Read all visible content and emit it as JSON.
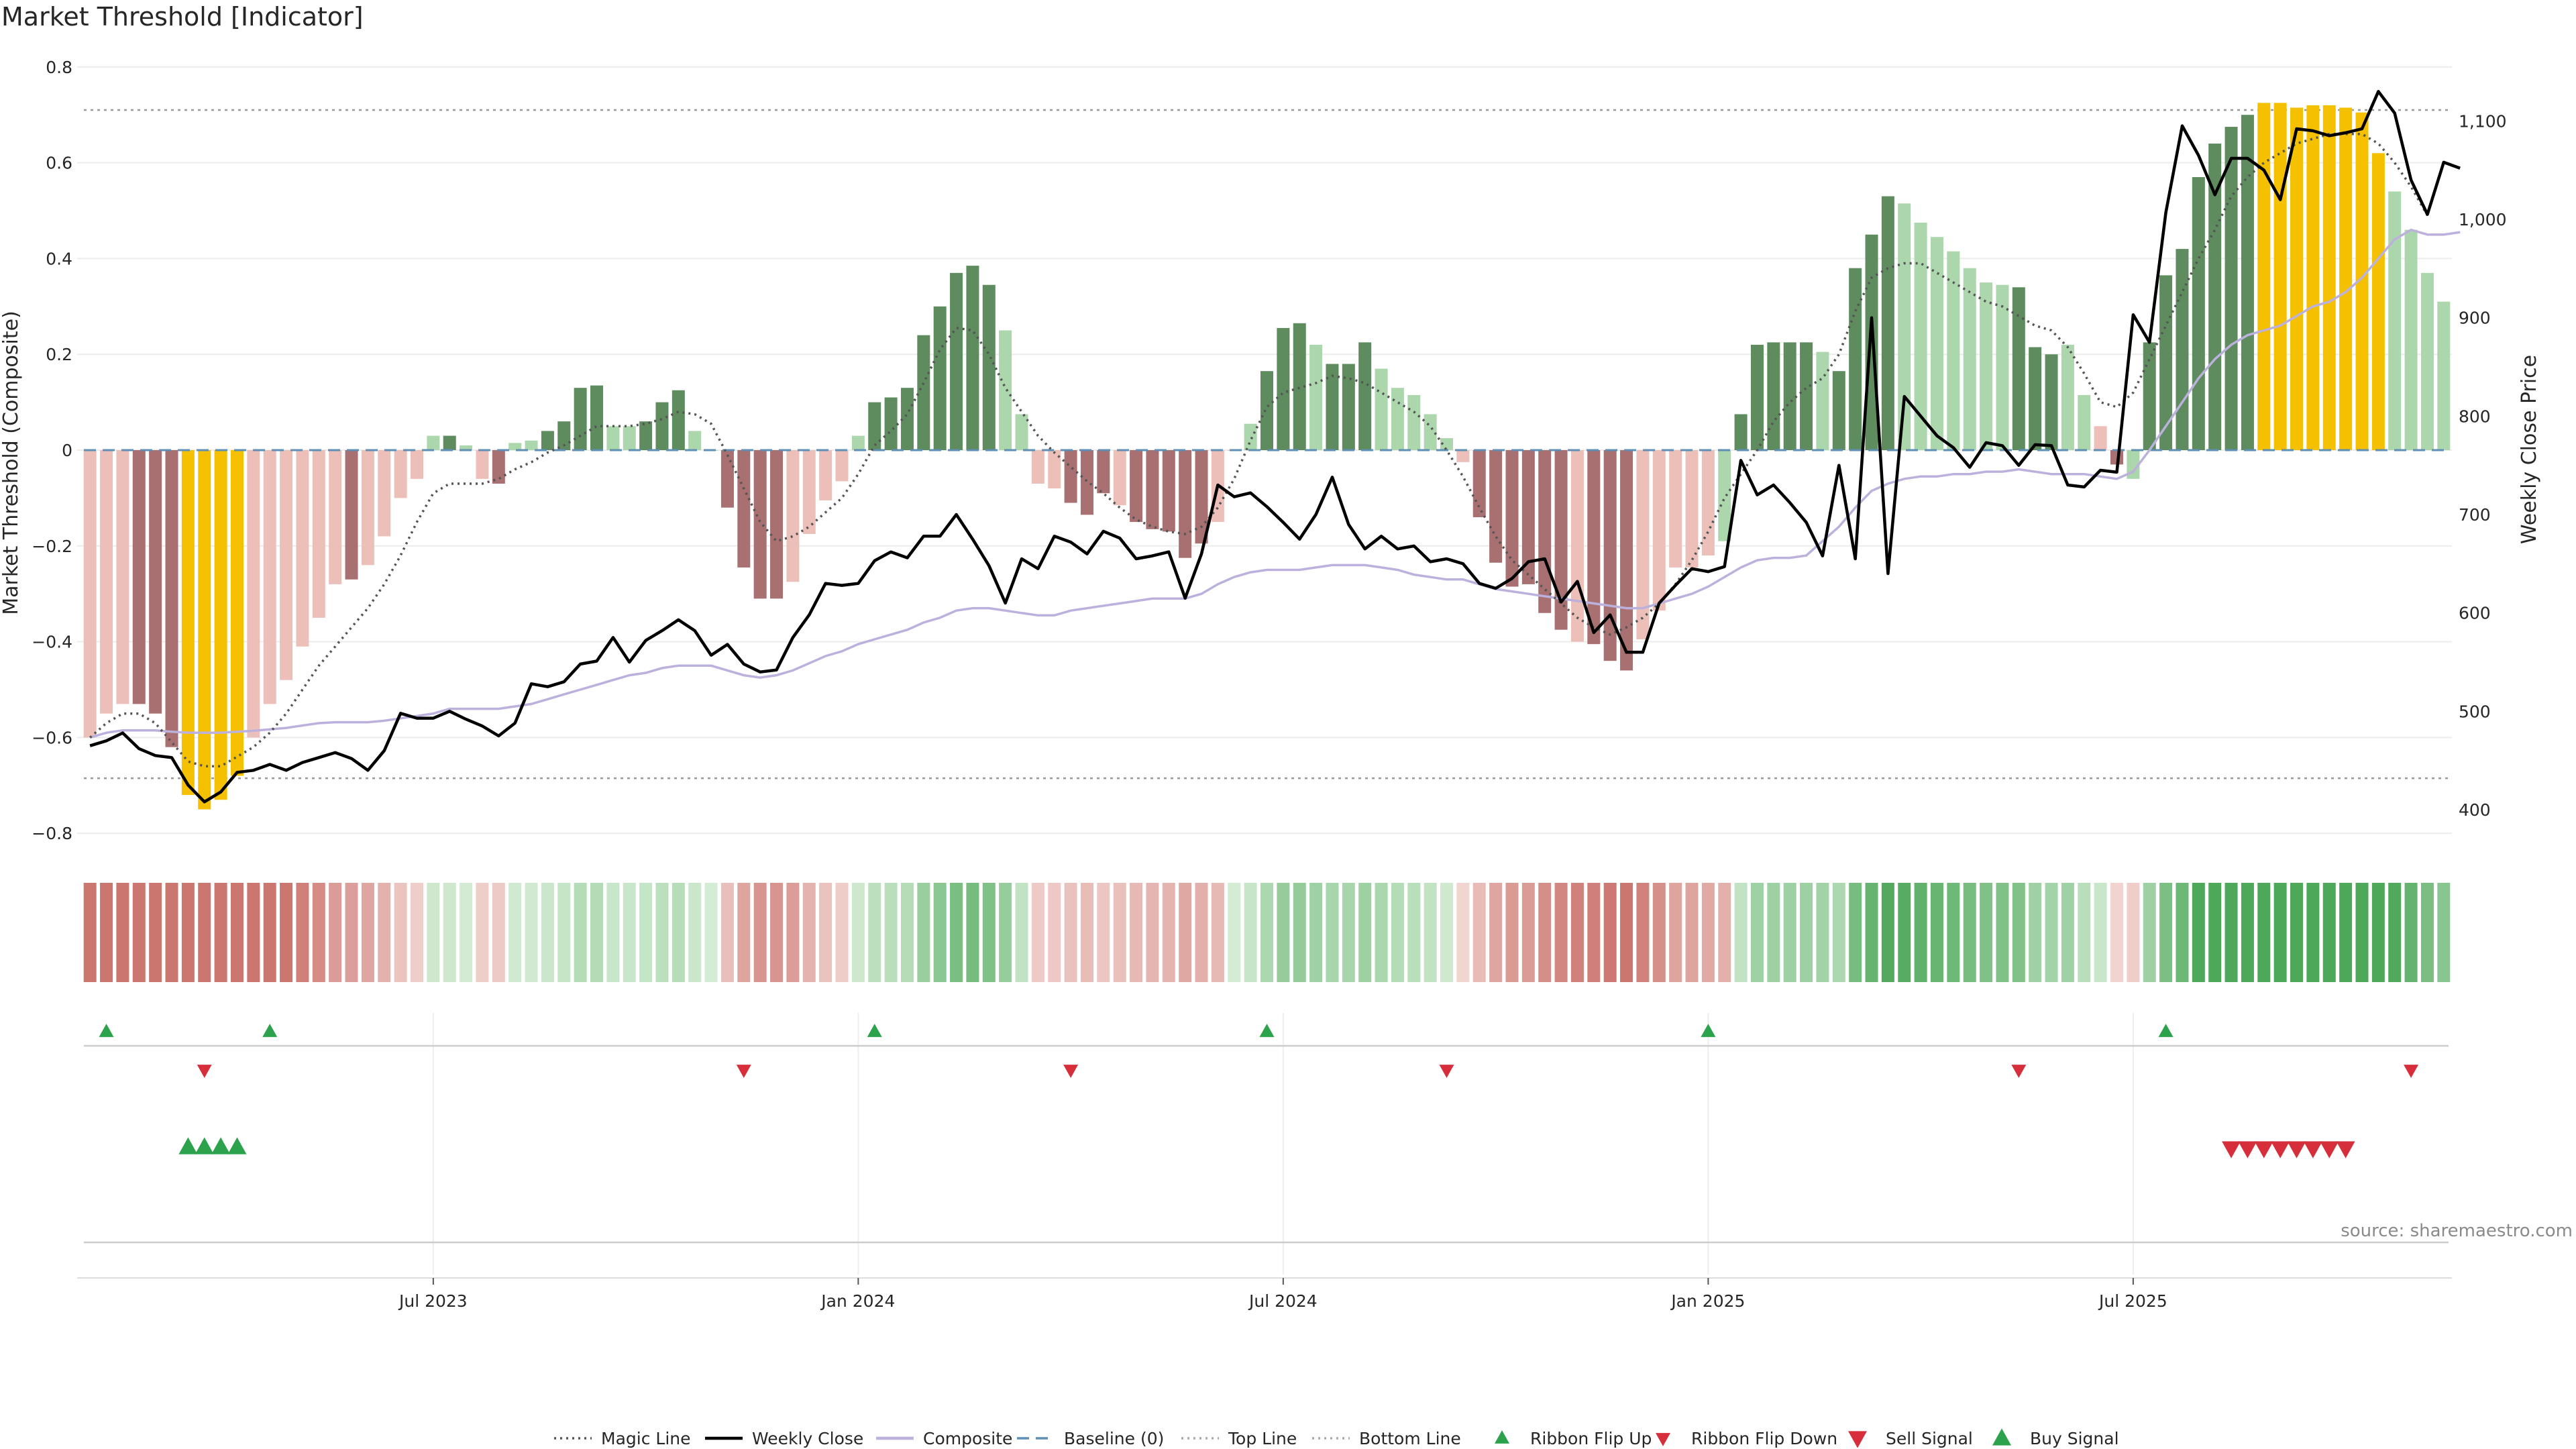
{
  "chart_data": {
    "type": "bar",
    "title": "Market Threshold [Indicator]",
    "ylabel_left": "Market Threshold (Composite)",
    "ylabel_right": "Weekly Close Price",
    "source": "source: sharemaestro.com",
    "y_left_ticks": [
      "0.8",
      "0.6",
      "0.4",
      "0.2",
      "0",
      "−0.2",
      "−0.4",
      "−0.6",
      "−0.8"
    ],
    "y_left_range": [
      -0.8,
      0.8
    ],
    "y_right_ticks": [
      "1,100",
      "1,000",
      "900",
      "800",
      "700",
      "600",
      "500",
      "400"
    ],
    "y_right_range": [
      390,
      1140
    ],
    "x_ticks": [
      "Jul 2023",
      "Jan 2024",
      "Jul 2024",
      "Jan 2025",
      "Jul 2025"
    ],
    "x_tick_index": [
      21,
      47,
      73,
      99,
      125
    ],
    "top_line": 0.71,
    "bottom_line": -0.685,
    "grid": true,
    "legend_position": "bottom",
    "colors": {
      "strong_pos": "#5e8c5e",
      "weak_pos": "#acd6ac",
      "strong_neg": "#a87070",
      "weak_neg": "#ecc0b9",
      "extreme": "#f5c000",
      "close": "#000000",
      "magic": "#555555",
      "composite": "#bcb0dc",
      "baseline": "#5f8fb4",
      "buy": "#2ca24c",
      "sell": "#d62f3b"
    },
    "bar_styles": [
      "weak_neg",
      "weak_neg",
      "weak_neg",
      "strong_neg",
      "strong_neg",
      "strong_neg",
      "extreme",
      "extreme",
      "extreme",
      "extreme",
      "weak_neg",
      "weak_neg",
      "weak_neg",
      "weak_neg",
      "weak_neg",
      "weak_neg",
      "strong_neg",
      "weak_neg",
      "weak_neg",
      "weak_neg",
      "weak_neg",
      "weak_pos",
      "strong_pos",
      "weak_pos",
      "weak_neg",
      "strong_neg",
      "weak_pos",
      "weak_pos",
      "strong_pos",
      "strong_pos",
      "strong_pos",
      "strong_pos",
      "weak_pos",
      "weak_pos",
      "strong_pos",
      "strong_pos",
      "strong_pos",
      "weak_pos",
      "weak_pos",
      "strong_neg",
      "strong_neg",
      "strong_neg",
      "strong_neg",
      "weak_neg",
      "weak_neg",
      "weak_neg",
      "weak_neg",
      "weak_pos",
      "strong_pos",
      "strong_pos",
      "strong_pos",
      "strong_pos",
      "strong_pos",
      "strong_pos",
      "strong_pos",
      "strong_pos",
      "weak_pos",
      "weak_pos",
      "weak_neg",
      "weak_neg",
      "strong_neg",
      "strong_neg",
      "strong_neg",
      "weak_neg",
      "strong_neg",
      "strong_neg",
      "strong_neg",
      "strong_neg",
      "strong_neg",
      "weak_neg",
      "weak_neg",
      "weak_pos",
      "strong_pos",
      "strong_pos",
      "strong_pos",
      "weak_pos",
      "strong_pos",
      "strong_pos",
      "strong_pos",
      "weak_pos",
      "weak_pos",
      "weak_pos",
      "weak_pos",
      "weak_pos",
      "weak_neg",
      "strong_neg",
      "strong_neg",
      "strong_neg",
      "strong_neg",
      "strong_neg",
      "strong_neg",
      "weak_neg",
      "strong_neg",
      "strong_neg",
      "strong_neg",
      "weak_neg",
      "weak_neg",
      "weak_neg",
      "weak_neg",
      "weak_neg",
      "weak_pos",
      "strong_pos",
      "strong_pos",
      "strong_pos",
      "strong_pos",
      "strong_pos",
      "weak_pos",
      "strong_pos",
      "strong_pos",
      "strong_pos",
      "strong_pos",
      "weak_pos",
      "weak_pos",
      "weak_pos",
      "weak_pos",
      "weak_pos",
      "weak_pos",
      "weak_pos",
      "strong_pos",
      "strong_pos",
      "strong_pos",
      "weak_pos",
      "weak_pos",
      "weak_neg",
      "strong_neg",
      "weak_pos",
      "strong_pos",
      "strong_pos",
      "strong_pos",
      "strong_pos",
      "strong_pos",
      "strong_pos",
      "strong_pos",
      "extreme",
      "extreme",
      "extreme",
      "extreme",
      "extreme",
      "extreme",
      "extreme",
      "extreme",
      "weak_pos",
      "weak_pos",
      "weak_pos",
      "weak_pos",
      "weak_pos"
    ],
    "composite_bars": [
      -0.6,
      -0.55,
      -0.53,
      -0.53,
      -0.55,
      -0.62,
      -0.72,
      -0.75,
      -0.73,
      -0.68,
      -0.6,
      -0.53,
      -0.48,
      -0.41,
      -0.35,
      -0.28,
      -0.27,
      -0.24,
      -0.18,
      -0.1,
      -0.06,
      0.03,
      0.03,
      0.01,
      -0.06,
      -0.07,
      0.015,
      0.02,
      0.04,
      0.06,
      0.13,
      0.135,
      0.05,
      0.05,
      0.06,
      0.1,
      0.125,
      0.04,
      0.0,
      -0.12,
      -0.245,
      -0.31,
      -0.31,
      -0.275,
      -0.175,
      -0.105,
      -0.065,
      0.03,
      0.1,
      0.11,
      0.13,
      0.24,
      0.3,
      0.37,
      0.385,
      0.345,
      0.25,
      0.075,
      -0.07,
      -0.08,
      -0.11,
      -0.135,
      -0.09,
      -0.115,
      -0.15,
      -0.165,
      -0.17,
      -0.225,
      -0.195,
      -0.15,
      0.0,
      0.055,
      0.165,
      0.255,
      0.265,
      0.22,
      0.18,
      0.18,
      0.225,
      0.17,
      0.13,
      0.115,
      0.075,
      0.025,
      -0.025,
      -0.14,
      -0.235,
      -0.285,
      -0.28,
      -0.34,
      -0.375,
      -0.4,
      -0.405,
      -0.44,
      -0.46,
      -0.395,
      -0.335,
      -0.245,
      -0.245,
      -0.22,
      -0.19,
      0.075,
      0.22,
      0.225,
      0.225,
      0.225,
      0.205,
      0.165,
      0.38,
      0.45,
      0.53,
      0.515,
      0.475,
      0.445,
      0.415,
      0.38,
      0.35,
      0.345,
      0.34,
      0.215,
      0.2,
      0.22,
      0.115,
      0.05,
      -0.03,
      -0.06,
      0.225,
      0.365,
      0.42,
      0.57,
      0.64,
      0.675,
      0.7,
      0.725,
      0.725,
      0.715,
      0.72,
      0.72,
      0.715,
      0.705,
      0.62,
      0.54,
      0.46,
      0.37,
      0.31
    ],
    "weekly_close": [
      465,
      470,
      478,
      462,
      455,
      453,
      425,
      408,
      418,
      438,
      440,
      446,
      440,
      448,
      453,
      458,
      452,
      440,
      460,
      498,
      493,
      493,
      500,
      492,
      485,
      475,
      488,
      528,
      525,
      530,
      548,
      551,
      575,
      550,
      572,
      582,
      593,
      582,
      557,
      568,
      548,
      540,
      542,
      575,
      598,
      630,
      628,
      630,
      653,
      662,
      656,
      678,
      678,
      700,
      675,
      648,
      610,
      655,
      645,
      678,
      672,
      660,
      683,
      676,
      655,
      658,
      662,
      615,
      660,
      730,
      718,
      722,
      708,
      692,
      675,
      700,
      738,
      690,
      665,
      678,
      665,
      668,
      652,
      655,
      650,
      630,
      625,
      635,
      652,
      655,
      611,
      632,
      580,
      598,
      560,
      560,
      610,
      628,
      645,
      642,
      647,
      755,
      720,
      730,
      712,
      692,
      658,
      750,
      655,
      900,
      640,
      820,
      800,
      780,
      768,
      748,
      773,
      770,
      750,
      771,
      770,
      730,
      728,
      745,
      743,
      903,
      875,
      1007,
      1095,
      1065,
      1025,
      1062,
      1062,
      1050,
      1020,
      1092,
      1090,
      1085,
      1088,
      1092,
      1130,
      1108,
      1040,
      1005,
      1058,
      1052
    ],
    "composite_line": [
      -0.6,
      -0.59,
      -0.585,
      -0.585,
      -0.585,
      -0.588,
      -0.59,
      -0.59,
      -0.59,
      -0.588,
      -0.586,
      -0.583,
      -0.58,
      -0.575,
      -0.57,
      -0.568,
      -0.568,
      -0.568,
      -0.565,
      -0.56,
      -0.555,
      -0.55,
      -0.54,
      -0.54,
      -0.54,
      -0.54,
      -0.535,
      -0.53,
      -0.52,
      -0.51,
      -0.5,
      -0.49,
      -0.48,
      -0.47,
      -0.465,
      -0.455,
      -0.45,
      -0.45,
      -0.45,
      -0.46,
      -0.47,
      -0.475,
      -0.47,
      -0.46,
      -0.445,
      -0.43,
      -0.42,
      -0.405,
      -0.395,
      -0.385,
      -0.375,
      -0.36,
      -0.35,
      -0.335,
      -0.33,
      -0.33,
      -0.335,
      -0.34,
      -0.345,
      -0.345,
      -0.335,
      -0.33,
      -0.325,
      -0.32,
      -0.315,
      -0.31,
      -0.31,
      -0.31,
      -0.3,
      -0.28,
      -0.265,
      -0.255,
      -0.25,
      -0.25,
      -0.25,
      -0.245,
      -0.24,
      -0.24,
      -0.24,
      -0.245,
      -0.25,
      -0.26,
      -0.265,
      -0.27,
      -0.27,
      -0.28,
      -0.29,
      -0.295,
      -0.3,
      -0.305,
      -0.31,
      -0.315,
      -0.32,
      -0.325,
      -0.33,
      -0.33,
      -0.32,
      -0.31,
      -0.3,
      -0.285,
      -0.265,
      -0.245,
      -0.23,
      -0.225,
      -0.225,
      -0.22,
      -0.19,
      -0.16,
      -0.12,
      -0.085,
      -0.07,
      -0.06,
      -0.055,
      -0.055,
      -0.05,
      -0.05,
      -0.045,
      -0.045,
      -0.04,
      -0.045,
      -0.05,
      -0.05,
      -0.05,
      -0.055,
      -0.06,
      -0.045,
      0.0,
      0.05,
      0.1,
      0.15,
      0.19,
      0.22,
      0.24,
      0.25,
      0.26,
      0.28,
      0.3,
      0.31,
      0.33,
      0.36,
      0.4,
      0.44,
      0.46,
      0.45,
      0.45,
      0.455
    ],
    "magic_line": [
      -0.6,
      -0.57,
      -0.55,
      -0.55,
      -0.57,
      -0.61,
      -0.65,
      -0.66,
      -0.66,
      -0.64,
      -0.62,
      -0.59,
      -0.55,
      -0.5,
      -0.45,
      -0.41,
      -0.37,
      -0.33,
      -0.28,
      -0.22,
      -0.15,
      -0.09,
      -0.07,
      -0.07,
      -0.07,
      -0.06,
      -0.04,
      -0.025,
      -0.005,
      0.01,
      0.03,
      0.05,
      0.05,
      0.05,
      0.055,
      0.065,
      0.08,
      0.075,
      0.055,
      -0.01,
      -0.08,
      -0.15,
      -0.19,
      -0.18,
      -0.16,
      -0.13,
      -0.1,
      -0.05,
      0.01,
      0.04,
      0.075,
      0.14,
      0.21,
      0.255,
      0.25,
      0.2,
      0.13,
      0.08,
      0.03,
      -0.005,
      -0.035,
      -0.065,
      -0.09,
      -0.12,
      -0.145,
      -0.16,
      -0.17,
      -0.175,
      -0.16,
      -0.12,
      -0.06,
      0.02,
      0.09,
      0.12,
      0.13,
      0.14,
      0.155,
      0.15,
      0.14,
      0.12,
      0.1,
      0.08,
      0.05,
      0.0,
      -0.055,
      -0.12,
      -0.18,
      -0.23,
      -0.26,
      -0.29,
      -0.32,
      -0.35,
      -0.37,
      -0.385,
      -0.37,
      -0.35,
      -0.32,
      -0.28,
      -0.23,
      -0.17,
      -0.1,
      -0.05,
      0.0,
      0.06,
      0.1,
      0.13,
      0.15,
      0.2,
      0.29,
      0.36,
      0.38,
      0.39,
      0.39,
      0.37,
      0.35,
      0.33,
      0.31,
      0.3,
      0.28,
      0.26,
      0.25,
      0.215,
      0.16,
      0.1,
      0.09,
      0.12,
      0.19,
      0.26,
      0.33,
      0.4,
      0.46,
      0.53,
      0.57,
      0.6,
      0.62,
      0.64,
      0.65,
      0.66,
      0.66,
      0.66,
      0.64,
      0.6,
      0.55,
      0.49
    ]
  },
  "signals": {
    "ribbon_flip_up": [
      1,
      11,
      48,
      72,
      99,
      127
    ],
    "ribbon_flip_down": [
      7,
      40,
      60,
      83,
      118,
      142
    ],
    "buy_signal": [
      6,
      7,
      8,
      9
    ],
    "sell_signal": [
      131,
      132,
      133,
      134,
      135,
      136,
      137,
      138
    ]
  },
  "legend": [
    {
      "label": "Magic Line",
      "kind": "dotted",
      "color": "#555555"
    },
    {
      "label": "Weekly Close",
      "kind": "solid",
      "color": "#000000"
    },
    {
      "label": "Composite",
      "kind": "solid",
      "color": "#bcb0dc"
    },
    {
      "label": "Baseline (0)",
      "kind": "dashed",
      "color": "#5f8fb4"
    },
    {
      "label": "Top Line",
      "kind": "dotted",
      "color": "#aaaaaa"
    },
    {
      "label": "Bottom Line",
      "kind": "dotted",
      "color": "#aaaaaa"
    },
    {
      "label": "Ribbon Flip Up",
      "kind": "tri-up-small",
      "color": "#2ca24c"
    },
    {
      "label": "Ribbon Flip Down",
      "kind": "tri-down-small",
      "color": "#d62f3b"
    },
    {
      "label": "Sell Signal",
      "kind": "tri-down",
      "color": "#d62f3b"
    },
    {
      "label": "Buy Signal",
      "kind": "tri-up",
      "color": "#2ca24c"
    }
  ]
}
